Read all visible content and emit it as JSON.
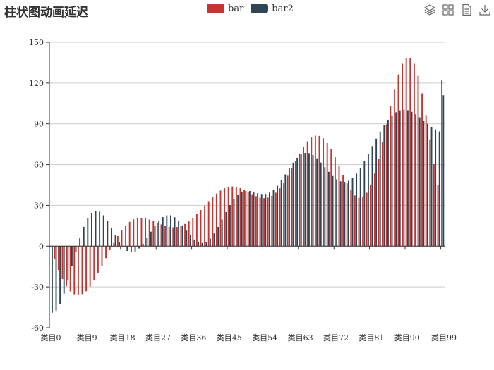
{
  "title": "柱状图动画延迟",
  "toolbox": {
    "icons": [
      "magic-type-icon",
      "data-zoom-icon",
      "data-view-icon",
      "save-image-icon"
    ]
  },
  "colors": {
    "bar": "#c23531",
    "bar2": "#2f4554",
    "axis": "#333333",
    "grid": "#cccccc",
    "text": "#333333"
  },
  "chart_data": {
    "type": "bar",
    "title": "柱状图动画延迟",
    "legend": [
      "bar",
      "bar2"
    ],
    "legend_position": "top-center",
    "grid": true,
    "ylim": [
      -60,
      150
    ],
    "yticks": [
      -60,
      -30,
      0,
      30,
      60,
      90,
      120,
      150
    ],
    "ytick_labels": [
      "-60",
      "-30",
      "0",
      "30",
      "60",
      "90",
      "120",
      "150"
    ],
    "xtick_labels": [
      "类目0",
      "类目9",
      "类目18",
      "类目27",
      "类目36",
      "类目45",
      "类目54",
      "类目63",
      "类目72",
      "类目81",
      "类目90",
      "类目99"
    ],
    "categories": [
      "类目0",
      "类目1",
      "类目2",
      "类目3",
      "类目4",
      "类目5",
      "类目6",
      "类目7",
      "类目8",
      "类目9",
      "类目10",
      "类目11",
      "类目12",
      "类目13",
      "类目14",
      "类目15",
      "类目16",
      "类目17",
      "类目18",
      "类目19",
      "类目20",
      "类目21",
      "类目22",
      "类目23",
      "类目24",
      "类目25",
      "类目26",
      "类目27",
      "类目28",
      "类目29",
      "类目30",
      "类目31",
      "类目32",
      "类目33",
      "类目34",
      "类目35",
      "类目36",
      "类目37",
      "类目38",
      "类目39",
      "类目40",
      "类目41",
      "类目42",
      "类目43",
      "类目44",
      "类目45",
      "类目46",
      "类目47",
      "类目48",
      "类目49",
      "类目50",
      "类目51",
      "类目52",
      "类目53",
      "类目54",
      "类目55",
      "类目56",
      "类目57",
      "类目58",
      "类目59",
      "类目60",
      "类目61",
      "类目62",
      "类目63",
      "类目64",
      "类目65",
      "类目66",
      "类目67",
      "类目68",
      "类目69",
      "类目70",
      "类目71",
      "类目72",
      "类目73",
      "类目74",
      "类目75",
      "类目76",
      "类目77",
      "类目78",
      "类目79",
      "类目80",
      "类目81",
      "类目82",
      "类目83",
      "类目84",
      "类目85",
      "类目86",
      "类目87",
      "类目88",
      "类目89",
      "类目90",
      "类目91",
      "类目92",
      "类目93",
      "类目94",
      "类目95",
      "类目96",
      "类目97",
      "类目98",
      "类目99"
    ],
    "series": [
      {
        "name": "bar",
        "values": [
          0,
          -9.2,
          -17.5,
          -24.3,
          -29.5,
          -33.3,
          -35.4,
          -36.1,
          -35.3,
          -33.2,
          -29.7,
          -25.3,
          -20.1,
          -14.6,
          -8.8,
          -3,
          2.4,
          7.4,
          11.7,
          15.3,
          17.9,
          19.7,
          20.7,
          20.9,
          20.5,
          19.6,
          18.5,
          17.2,
          16,
          14.9,
          14.2,
          13.9,
          14.1,
          14.9,
          16.3,
          18.2,
          20.7,
          23.5,
          26.6,
          29.9,
          33.1,
          36.1,
          38.7,
          40.9,
          42.6,
          43.6,
          43.9,
          43.6,
          42.7,
          41.4,
          39.8,
          38.2,
          36.8,
          35.7,
          35.3,
          35.7,
          37,
          39.3,
          42.6,
          46.8,
          51.8,
          57.2,
          62.8,
          68.2,
          73.1,
          77.1,
          79.9,
          81.3,
          81.1,
          79.3,
          75.9,
          71.2,
          65.4,
          58.9,
          52.3,
          46.2,
          41,
          37.3,
          35.6,
          36.2,
          39.3,
          45.1,
          53.4,
          64,
          76.3,
          89.6,
          103,
          115.6,
          126.3,
          134.2,
          138.5,
          138.6,
          134.2,
          125.3,
          112.4,
          96.4,
          78.6,
          60.7,
          44.8,
          122
        ]
      },
      {
        "name": "bar2",
        "values": [
          -49,
          -47.4,
          -42.6,
          -35,
          -25.4,
          -14.8,
          -4.1,
          5.8,
          14.2,
          20.5,
          24.5,
          26.1,
          25.4,
          22.7,
          18.4,
          13.2,
          7.9,
          3,
          -0.9,
          -3.5,
          -4.5,
          -3.9,
          -1.7,
          1.8,
          6.1,
          10.7,
          15.1,
          18.8,
          21.4,
          22.7,
          22.7,
          21.3,
          18.7,
          15.3,
          11.5,
          7.9,
          4.9,
          2.9,
          2.3,
          3.2,
          5.6,
          9.4,
          14.2,
          19.6,
          25.1,
          30.2,
          34.5,
          37.7,
          39.7,
          40.6,
          40.6,
          39.9,
          39,
          38.4,
          38.4,
          39.4,
          41.4,
          44.5,
          48.4,
          52.8,
          57.3,
          61.5,
          65,
          67.5,
          68.6,
          68.4,
          67,
          64.6,
          61.5,
          58.1,
          54.7,
          51.6,
          49.2,
          47.7,
          47.3,
          48.1,
          50.2,
          53.4,
          57.6,
          62.6,
          68,
          73.6,
          79.1,
          84.3,
          89,
          93,
          96.2,
          98.5,
          99.9,
          100.4,
          100,
          98.8,
          97,
          94.8,
          92.4,
          90,
          87.8,
          85.9,
          84.4,
          111
        ]
      }
    ]
  }
}
